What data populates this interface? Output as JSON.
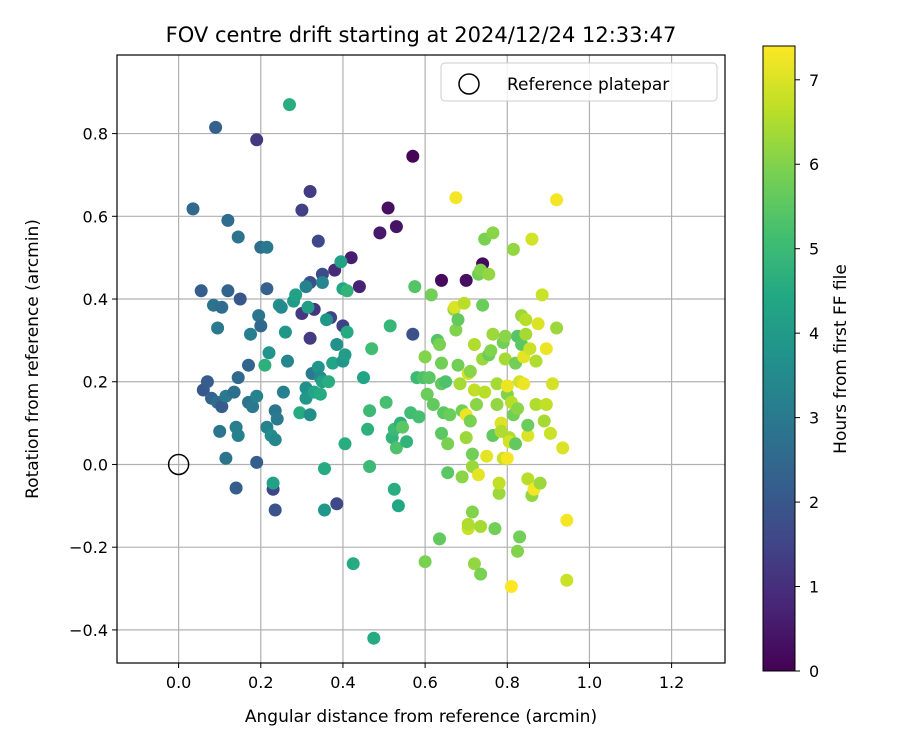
{
  "chart_data": {
    "type": "scatter",
    "title": "FOV centre drift starting at 2024/12/24 12:33:47",
    "xlabel": "Angular distance from reference (arcmin)",
    "ylabel": "Rotation from reference (arcmin)",
    "xlim": [
      -0.15,
      1.33
    ],
    "ylim": [
      -0.48,
      0.99
    ],
    "xticks": [
      0.0,
      0.2,
      0.4,
      0.6,
      0.8,
      1.0,
      1.2
    ],
    "xtick_labels": [
      "0.0",
      "0.2",
      "0.4",
      "0.6",
      "0.8",
      "1.0",
      "1.2"
    ],
    "yticks": [
      -0.4,
      -0.2,
      0.0,
      0.2,
      0.4,
      0.6,
      0.8
    ],
    "ytick_labels": [
      "−0.4",
      "−0.2",
      "0.0",
      "0.2",
      "0.4",
      "0.6",
      "0.8"
    ],
    "grid": true,
    "legend": {
      "position": "top-right",
      "entries": [
        "Reference platepar"
      ]
    },
    "reference_point": {
      "x": 0.0,
      "y": 0.0
    },
    "colorbar": {
      "label": "Hours from first FF file",
      "min": 0,
      "max": 7.4,
      "ticks": [
        0,
        1,
        2,
        3,
        4,
        5,
        6,
        7
      ],
      "tick_labels": [
        "0",
        "1",
        "2",
        "3",
        "4",
        "5",
        "6",
        "7"
      ],
      "colormap": "viridis"
    },
    "colors": {
      "viridis": [
        "#440154",
        "#482475",
        "#414487",
        "#355f8d",
        "#2a788e",
        "#21918c",
        "#22a884",
        "#44bf70",
        "#7ad151",
        "#bddf26",
        "#fde725"
      ],
      "grid": "#b0b0b0"
    },
    "points": [
      {
        "x": 0.57,
        "y": 0.745,
        "c": 0.1
      },
      {
        "x": 0.51,
        "y": 0.62,
        "c": 0.3
      },
      {
        "x": 0.53,
        "y": 0.575,
        "c": 0.4
      },
      {
        "x": 0.49,
        "y": 0.56,
        "c": 0.5
      },
      {
        "x": 0.42,
        "y": 0.5,
        "c": 0.6
      },
      {
        "x": 0.64,
        "y": 0.445,
        "c": 0.2
      },
      {
        "x": 0.7,
        "y": 0.445,
        "c": 0.3
      },
      {
        "x": 0.74,
        "y": 0.485,
        "c": 0.2
      },
      {
        "x": 0.44,
        "y": 0.43,
        "c": 0.7
      },
      {
        "x": 0.38,
        "y": 0.47,
        "c": 0.9
      },
      {
        "x": 0.19,
        "y": 0.785,
        "c": 1.2
      },
      {
        "x": 0.32,
        "y": 0.66,
        "c": 1.3
      },
      {
        "x": 0.3,
        "y": 0.615,
        "c": 1.4
      },
      {
        "x": 0.34,
        "y": 0.54,
        "c": 1.6
      },
      {
        "x": 0.3,
        "y": 0.365,
        "c": 1.2
      },
      {
        "x": 0.33,
        "y": 0.375,
        "c": 1.1
      },
      {
        "x": 0.32,
        "y": 0.305,
        "c": 1.3
      },
      {
        "x": 0.4,
        "y": 0.335,
        "c": 1.4
      },
      {
        "x": 0.37,
        "y": 0.355,
        "c": 1.5
      },
      {
        "x": 0.35,
        "y": 0.46,
        "c": 1.7
      },
      {
        "x": 0.32,
        "y": 0.44,
        "c": 1.8
      },
      {
        "x": 0.385,
        "y": -0.095,
        "c": 1.6
      },
      {
        "x": 0.23,
        "y": -0.06,
        "c": 1.5
      },
      {
        "x": 0.235,
        "y": -0.11,
        "c": 1.9
      },
      {
        "x": 0.09,
        "y": 0.815,
        "c": 2.3
      },
      {
        "x": 0.035,
        "y": 0.618,
        "c": 2.5
      },
      {
        "x": 0.12,
        "y": 0.59,
        "c": 2.6
      },
      {
        "x": 0.145,
        "y": 0.55,
        "c": 2.8
      },
      {
        "x": 0.2,
        "y": 0.525,
        "c": 2.7
      },
      {
        "x": 0.215,
        "y": 0.525,
        "c": 3.0
      },
      {
        "x": 0.055,
        "y": 0.42,
        "c": 2.2
      },
      {
        "x": 0.12,
        "y": 0.42,
        "c": 2.4
      },
      {
        "x": 0.15,
        "y": 0.4,
        "c": 2.0
      },
      {
        "x": 0.085,
        "y": 0.385,
        "c": 2.8
      },
      {
        "x": 0.095,
        "y": 0.33,
        "c": 3.0
      },
      {
        "x": 0.105,
        "y": 0.38,
        "c": 2.6
      },
      {
        "x": 0.175,
        "y": 0.315,
        "c": 3.1
      },
      {
        "x": 0.195,
        "y": 0.36,
        "c": 2.9
      },
      {
        "x": 0.2,
        "y": 0.335,
        "c": 2.5
      },
      {
        "x": 0.215,
        "y": 0.425,
        "c": 2.3
      },
      {
        "x": 0.06,
        "y": 0.18,
        "c": 2.0
      },
      {
        "x": 0.07,
        "y": 0.2,
        "c": 2.2
      },
      {
        "x": 0.08,
        "y": 0.16,
        "c": 2.4
      },
      {
        "x": 0.095,
        "y": 0.15,
        "c": 2.6
      },
      {
        "x": 0.105,
        "y": 0.14,
        "c": 2.1
      },
      {
        "x": 0.1,
        "y": 0.08,
        "c": 2.9
      },
      {
        "x": 0.115,
        "y": 0.165,
        "c": 3.0
      },
      {
        "x": 0.135,
        "y": 0.175,
        "c": 2.7
      },
      {
        "x": 0.145,
        "y": 0.21,
        "c": 2.5
      },
      {
        "x": 0.14,
        "y": 0.09,
        "c": 3.1
      },
      {
        "x": 0.145,
        "y": 0.07,
        "c": 3.2
      },
      {
        "x": 0.115,
        "y": 0.015,
        "c": 2.8
      },
      {
        "x": 0.14,
        "y": -0.057,
        "c": 2.2
      },
      {
        "x": 0.17,
        "y": 0.24,
        "c": 2.4
      },
      {
        "x": 0.17,
        "y": 0.15,
        "c": 2.8
      },
      {
        "x": 0.18,
        "y": 0.14,
        "c": 3.0
      },
      {
        "x": 0.19,
        "y": 0.165,
        "c": 3.3
      },
      {
        "x": 0.19,
        "y": 0.005,
        "c": 2.2
      },
      {
        "x": 0.21,
        "y": 0.24,
        "c": 4.7
      },
      {
        "x": 0.22,
        "y": 0.27,
        "c": 3.8
      },
      {
        "x": 0.215,
        "y": 0.09,
        "c": 3.3
      },
      {
        "x": 0.225,
        "y": 0.07,
        "c": 3.6
      },
      {
        "x": 0.23,
        "y": -0.045,
        "c": 4.2
      },
      {
        "x": 0.235,
        "y": 0.06,
        "c": 3.4
      },
      {
        "x": 0.235,
        "y": 0.13,
        "c": 2.9
      },
      {
        "x": 0.24,
        "y": 0.11,
        "c": 3.0
      },
      {
        "x": 0.245,
        "y": 0.385,
        "c": 3.8
      },
      {
        "x": 0.25,
        "y": 0.38,
        "c": 3.5
      },
      {
        "x": 0.255,
        "y": 0.175,
        "c": 3.2
      },
      {
        "x": 0.26,
        "y": 0.32,
        "c": 3.9
      },
      {
        "x": 0.265,
        "y": 0.25,
        "c": 3.4
      },
      {
        "x": 0.27,
        "y": 0.87,
        "c": 4.6
      },
      {
        "x": 0.28,
        "y": 0.395,
        "c": 4.0
      },
      {
        "x": 0.285,
        "y": 0.41,
        "c": 4.2
      },
      {
        "x": 0.295,
        "y": 0.125,
        "c": 4.5
      },
      {
        "x": 0.31,
        "y": 0.43,
        "c": 3.3
      },
      {
        "x": 0.31,
        "y": 0.185,
        "c": 3.7
      },
      {
        "x": 0.31,
        "y": 0.16,
        "c": 3.9
      },
      {
        "x": 0.32,
        "y": 0.12,
        "c": 3.6
      },
      {
        "x": 0.315,
        "y": 0.38,
        "c": 4.1
      },
      {
        "x": 0.325,
        "y": 0.22,
        "c": 3.0
      },
      {
        "x": 0.33,
        "y": 0.175,
        "c": 4.3
      },
      {
        "x": 0.34,
        "y": 0.235,
        "c": 3.8
      },
      {
        "x": 0.345,
        "y": 0.21,
        "c": 3.5
      },
      {
        "x": 0.345,
        "y": 0.17,
        "c": 4.5
      },
      {
        "x": 0.35,
        "y": 0.44,
        "c": 3.4
      },
      {
        "x": 0.35,
        "y": 0.2,
        "c": 4.2
      },
      {
        "x": 0.355,
        "y": -0.01,
        "c": 4.5
      },
      {
        "x": 0.355,
        "y": -0.11,
        "c": 3.9
      },
      {
        "x": 0.36,
        "y": 0.35,
        "c": 3.9
      },
      {
        "x": 0.365,
        "y": 0.2,
        "c": 4.6
      },
      {
        "x": 0.375,
        "y": 0.245,
        "c": 4.3
      },
      {
        "x": 0.385,
        "y": 0.29,
        "c": 3.7
      },
      {
        "x": 0.395,
        "y": 0.49,
        "c": 4.2
      },
      {
        "x": 0.4,
        "y": 0.425,
        "c": 4.4
      },
      {
        "x": 0.4,
        "y": 0.25,
        "c": 3.9
      },
      {
        "x": 0.405,
        "y": 0.265,
        "c": 4.1
      },
      {
        "x": 0.405,
        "y": 0.05,
        "c": 4.6
      },
      {
        "x": 0.41,
        "y": 0.42,
        "c": 4.8
      },
      {
        "x": 0.41,
        "y": 0.32,
        "c": 4.5
      },
      {
        "x": 0.425,
        "y": -0.24,
        "c": 4.5
      },
      {
        "x": 0.45,
        "y": 0.21,
        "c": 4.3
      },
      {
        "x": 0.46,
        "y": 0.085,
        "c": 4.7
      },
      {
        "x": 0.465,
        "y": 0.13,
        "c": 5.0
      },
      {
        "x": 0.465,
        "y": -0.005,
        "c": 5.0
      },
      {
        "x": 0.47,
        "y": 0.28,
        "c": 5.1
      },
      {
        "x": 0.475,
        "y": -0.42,
        "c": 4.5
      },
      {
        "x": 0.505,
        "y": 0.15,
        "c": 5.2
      },
      {
        "x": 0.515,
        "y": 0.335,
        "c": 4.9
      },
      {
        "x": 0.52,
        "y": 0.065,
        "c": 4.8
      },
      {
        "x": 0.525,
        "y": 0.085,
        "c": 5.0
      },
      {
        "x": 0.525,
        "y": -0.06,
        "c": 4.6
      },
      {
        "x": 0.53,
        "y": 0.04,
        "c": 5.3
      },
      {
        "x": 0.535,
        "y": -0.1,
        "c": 4.4
      },
      {
        "x": 0.54,
        "y": 0.1,
        "c": 4.7
      },
      {
        "x": 0.545,
        "y": 0.09,
        "c": 5.5
      },
      {
        "x": 0.555,
        "y": 0.055,
        "c": 4.8
      },
      {
        "x": 0.565,
        "y": 0.125,
        "c": 5.1
      },
      {
        "x": 0.57,
        "y": 0.315,
        "c": 1.8
      },
      {
        "x": 0.575,
        "y": 0.43,
        "c": 5.4
      },
      {
        "x": 0.58,
        "y": 0.21,
        "c": 5.0
      },
      {
        "x": 0.585,
        "y": 0.115,
        "c": 5.2
      },
      {
        "x": 0.595,
        "y": 0.21,
        "c": 5.3
      },
      {
        "x": 0.6,
        "y": -0.235,
        "c": 5.9
      },
      {
        "x": 0.6,
        "y": 0.26,
        "c": 6.0
      },
      {
        "x": 0.605,
        "y": 0.17,
        "c": 5.7
      },
      {
        "x": 0.61,
        "y": 0.21,
        "c": 5.5
      },
      {
        "x": 0.615,
        "y": 0.41,
        "c": 5.8
      },
      {
        "x": 0.62,
        "y": 0.145,
        "c": 5.6
      },
      {
        "x": 0.63,
        "y": 0.3,
        "c": 5.4
      },
      {
        "x": 0.635,
        "y": 0.29,
        "c": 5.9
      },
      {
        "x": 0.635,
        "y": -0.18,
        "c": 5.6
      },
      {
        "x": 0.64,
        "y": 0.245,
        "c": 5.8
      },
      {
        "x": 0.64,
        "y": 0.075,
        "c": 5.5
      },
      {
        "x": 0.64,
        "y": 0.195,
        "c": 5.6
      },
      {
        "x": 0.645,
        "y": 0.125,
        "c": 5.5
      },
      {
        "x": 0.65,
        "y": 0.2,
        "c": 5.3
      },
      {
        "x": 0.655,
        "y": -0.02,
        "c": 5.5
      },
      {
        "x": 0.655,
        "y": 0.05,
        "c": 5.9
      },
      {
        "x": 0.66,
        "y": 0.12,
        "c": 5.7
      },
      {
        "x": 0.67,
        "y": 0.375,
        "c": 6.2
      },
      {
        "x": 0.672,
        "y": 0.38,
        "c": 7.0
      },
      {
        "x": 0.675,
        "y": 0.645,
        "c": 7.3
      },
      {
        "x": 0.675,
        "y": 0.325,
        "c": 6.0
      },
      {
        "x": 0.68,
        "y": 0.24,
        "c": 5.8
      },
      {
        "x": 0.68,
        "y": 0.35,
        "c": 5.6
      },
      {
        "x": 0.685,
        "y": 0.195,
        "c": 6.4
      },
      {
        "x": 0.69,
        "y": -0.03,
        "c": 6.1
      },
      {
        "x": 0.69,
        "y": 0.13,
        "c": 5.8
      },
      {
        "x": 0.695,
        "y": 0.39,
        "c": 6.6
      },
      {
        "x": 0.7,
        "y": 0.12,
        "c": 7.2
      },
      {
        "x": 0.7,
        "y": 0.065,
        "c": 6.3
      },
      {
        "x": 0.705,
        "y": -0.155,
        "c": 6.8
      },
      {
        "x": 0.705,
        "y": -0.145,
        "c": 6.5
      },
      {
        "x": 0.705,
        "y": 0.22,
        "c": 6.9
      },
      {
        "x": 0.71,
        "y": 0.225,
        "c": 6.1
      },
      {
        "x": 0.71,
        "y": 0.105,
        "c": 5.9
      },
      {
        "x": 0.715,
        "y": -0.005,
        "c": 6.3
      },
      {
        "x": 0.715,
        "y": 0.025,
        "c": 5.8
      },
      {
        "x": 0.715,
        "y": -0.115,
        "c": 6.0
      },
      {
        "x": 0.72,
        "y": 0.29,
        "c": 6.5
      },
      {
        "x": 0.72,
        "y": 0.18,
        "c": 6.7
      },
      {
        "x": 0.72,
        "y": -0.24,
        "c": 6.2
      },
      {
        "x": 0.725,
        "y": 0.145,
        "c": 6.1
      },
      {
        "x": 0.73,
        "y": -0.025,
        "c": 7.1
      },
      {
        "x": 0.73,
        "y": 0.46,
        "c": 5.8
      },
      {
        "x": 0.735,
        "y": 0.47,
        "c": 6.0
      },
      {
        "x": 0.735,
        "y": -0.15,
        "c": 6.4
      },
      {
        "x": 0.735,
        "y": -0.265,
        "c": 5.9
      },
      {
        "x": 0.74,
        "y": 0.385,
        "c": 5.7
      },
      {
        "x": 0.74,
        "y": 0.255,
        "c": 6.3
      },
      {
        "x": 0.745,
        "y": 0.545,
        "c": 5.9
      },
      {
        "x": 0.745,
        "y": 0.175,
        "c": 6.6
      },
      {
        "x": 0.75,
        "y": 0.02,
        "c": 7.1
      },
      {
        "x": 0.755,
        "y": 0.265,
        "c": 5.7
      },
      {
        "x": 0.755,
        "y": 0.46,
        "c": 6.2
      },
      {
        "x": 0.76,
        "y": 0.275,
        "c": 6.0
      },
      {
        "x": 0.765,
        "y": 0.56,
        "c": 6.1
      },
      {
        "x": 0.765,
        "y": 0.315,
        "c": 6.3
      },
      {
        "x": 0.765,
        "y": 0.07,
        "c": 5.6
      },
      {
        "x": 0.77,
        "y": -0.155,
        "c": 5.8
      },
      {
        "x": 0.775,
        "y": 0.145,
        "c": 6.2
      },
      {
        "x": 0.775,
        "y": 0.195,
        "c": 6.4
      },
      {
        "x": 0.78,
        "y": -0.07,
        "c": 6.3
      },
      {
        "x": 0.78,
        "y": -0.045,
        "c": 6.7
      },
      {
        "x": 0.785,
        "y": 0.1,
        "c": 7.0
      },
      {
        "x": 0.785,
        "y": 0.08,
        "c": 6.5
      },
      {
        "x": 0.79,
        "y": 0.295,
        "c": 5.8
      },
      {
        "x": 0.79,
        "y": 0.015,
        "c": 6.8
      },
      {
        "x": 0.795,
        "y": 0.31,
        "c": 6.1
      },
      {
        "x": 0.795,
        "y": 0.255,
        "c": 6.4
      },
      {
        "x": 0.8,
        "y": 0.17,
        "c": 6.0
      },
      {
        "x": 0.8,
        "y": 0.19,
        "c": 7.2
      },
      {
        "x": 0.8,
        "y": 0.015,
        "c": 7.3
      },
      {
        "x": 0.805,
        "y": 0.065,
        "c": 6.5
      },
      {
        "x": 0.805,
        "y": 0.055,
        "c": 6.9
      },
      {
        "x": 0.81,
        "y": 0.15,
        "c": 6.6
      },
      {
        "x": 0.81,
        "y": -0.295,
        "c": 7.4
      },
      {
        "x": 0.815,
        "y": 0.12,
        "c": 5.8
      },
      {
        "x": 0.815,
        "y": 0.52,
        "c": 6.2
      },
      {
        "x": 0.82,
        "y": 0.245,
        "c": 5.8
      },
      {
        "x": 0.82,
        "y": 0.05,
        "c": 5.6
      },
      {
        "x": 0.825,
        "y": 0.31,
        "c": 5.4
      },
      {
        "x": 0.825,
        "y": -0.21,
        "c": 6.0
      },
      {
        "x": 0.825,
        "y": 0.135,
        "c": 6.1
      },
      {
        "x": 0.83,
        "y": 0.2,
        "c": 6.9
      },
      {
        "x": 0.83,
        "y": -0.175,
        "c": 5.8
      },
      {
        "x": 0.835,
        "y": 0.36,
        "c": 6.3
      },
      {
        "x": 0.835,
        "y": 0.29,
        "c": 5.5
      },
      {
        "x": 0.84,
        "y": 0.26,
        "c": 7.1
      },
      {
        "x": 0.84,
        "y": 0.195,
        "c": 7.2
      },
      {
        "x": 0.845,
        "y": 0.35,
        "c": 6.6
      },
      {
        "x": 0.845,
        "y": 0.315,
        "c": 6.4
      },
      {
        "x": 0.85,
        "y": 0.07,
        "c": 7.0
      },
      {
        "x": 0.85,
        "y": 0.095,
        "c": 5.7
      },
      {
        "x": 0.85,
        "y": -0.035,
        "c": 6.6
      },
      {
        "x": 0.855,
        "y": 0.28,
        "c": 6.8
      },
      {
        "x": 0.86,
        "y": 0.545,
        "c": 6.9
      },
      {
        "x": 0.86,
        "y": -0.075,
        "c": 6.2
      },
      {
        "x": 0.865,
        "y": -0.06,
        "c": 7.3
      },
      {
        "x": 0.87,
        "y": 0.25,
        "c": 6.5
      },
      {
        "x": 0.87,
        "y": 0.145,
        "c": 6.5
      },
      {
        "x": 0.875,
        "y": 0.34,
        "c": 7.0
      },
      {
        "x": 0.88,
        "y": -0.045,
        "c": 6.3
      },
      {
        "x": 0.885,
        "y": 0.41,
        "c": 6.8
      },
      {
        "x": 0.89,
        "y": 0.105,
        "c": 6.4
      },
      {
        "x": 0.895,
        "y": 0.145,
        "c": 6.7
      },
      {
        "x": 0.895,
        "y": 0.28,
        "c": 7.2
      },
      {
        "x": 0.905,
        "y": 0.075,
        "c": 6.8
      },
      {
        "x": 0.91,
        "y": 0.195,
        "c": 6.9
      },
      {
        "x": 0.92,
        "y": 0.64,
        "c": 7.3
      },
      {
        "x": 0.92,
        "y": 0.33,
        "c": 6.3
      },
      {
        "x": 0.935,
        "y": 0.04,
        "c": 7.0
      },
      {
        "x": 0.945,
        "y": -0.28,
        "c": 6.8
      },
      {
        "x": 0.945,
        "y": -0.135,
        "c": 7.3
      }
    ]
  }
}
